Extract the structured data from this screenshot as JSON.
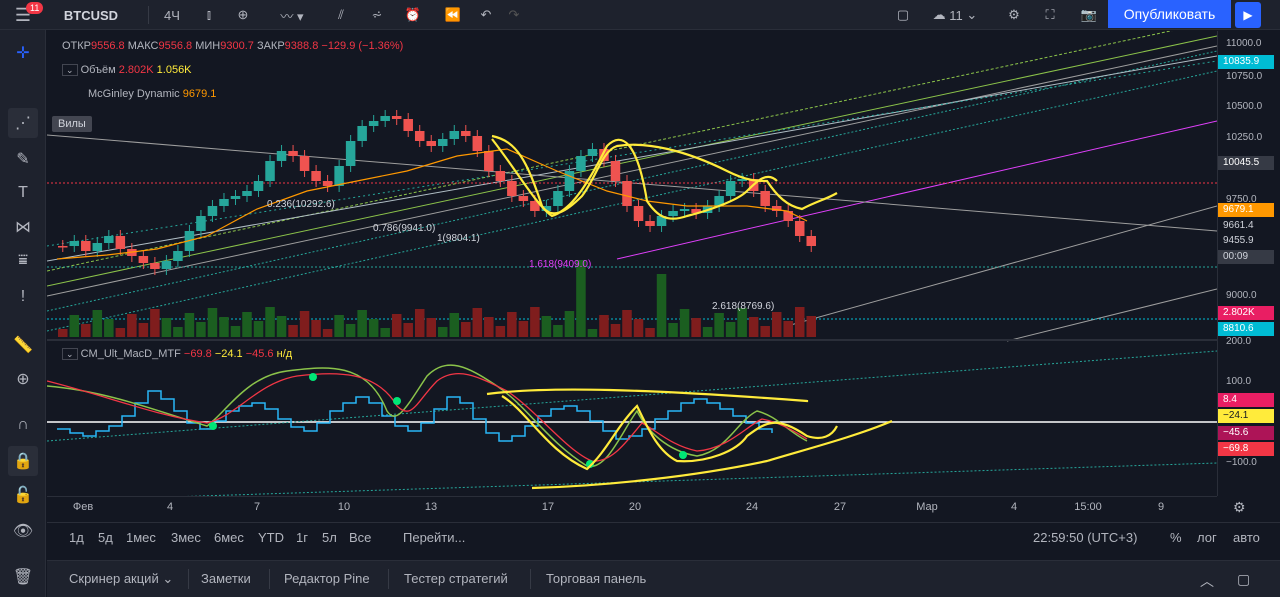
{
  "toolbar": {
    "notifications": "11",
    "symbol": "BTCUSD",
    "interval": "4Ч",
    "layouts_count": "11",
    "publish_label": "Опубликовать"
  },
  "left_tooltip": "Вилы",
  "legend": {
    "ohlc": {
      "open_label": "ОТКР",
      "open": "9556.8",
      "high_label": "МАКС",
      "high": "9556.8",
      "low_label": "МИН",
      "low": "9300.7",
      "close_label": "ЗАКР",
      "close": "9388.8",
      "change": "−129.9 (−1.36%)"
    },
    "volume": {
      "label": "Объём",
      "v1": "2.802K",
      "v2": "1.056K"
    },
    "mcginley": {
      "label": "McGinley Dynamic",
      "value": "9679.1"
    },
    "macd": {
      "label": "CM_Ult_MacD_MTF",
      "v1": "−69.8",
      "v2": "−24.1",
      "v3": "−45.6",
      "na": "н/д"
    }
  },
  "price_scale": {
    "labels": [
      "11000.0",
      "10750.0",
      "10500.0",
      "10250.0",
      "9750.0",
      "9000.0",
      "200.0"
    ],
    "tags": [
      {
        "text": "10835.9",
        "color": "#00bcd4"
      },
      {
        "text": "10045.5",
        "color": "#363a45"
      },
      {
        "text": "9679.1",
        "color": "#ff9800"
      },
      {
        "text": "9661.4",
        "color": "#131722"
      },
      {
        "text": "9455.9",
        "color": "#131722"
      },
      {
        "text": "00:09",
        "color": "#363a45"
      },
      {
        "text": "2.802K",
        "color": "#e91e63"
      },
      {
        "text": "8810.6",
        "color": "#00bcd4"
      }
    ]
  },
  "macd_scale": {
    "labels": [
      "100.0",
      "−100.0"
    ],
    "tags": [
      {
        "text": "8.4",
        "color": "#e91e63"
      },
      {
        "text": "−24.1",
        "color": "#ffeb3b"
      },
      {
        "text": "−45.6",
        "color": "#ad1457"
      },
      {
        "text": "−69.8",
        "color": "#f23645"
      }
    ]
  },
  "fib_labels": {
    "l1": "0.236(10292.6)",
    "l2": "0.786(9941.0)",
    "l3": "1(9804.1)",
    "l4": "1.618(9409.0)",
    "l5": "2.618(8769.6)"
  },
  "time_axis": [
    "Фев",
    "4",
    "7",
    "10",
    "13",
    "17",
    "20",
    "24",
    "27",
    "Мар",
    "4",
    "15:00",
    "9"
  ],
  "range_bar": {
    "ranges": [
      "1д",
      "5д",
      "1мес",
      "3мес",
      "6мес",
      "YTD",
      "1г",
      "5л",
      "Все"
    ],
    "goto": "Перейти...",
    "clock": "22:59:50 (UTC+3)",
    "percent": "%",
    "log": "лог",
    "auto": "авто"
  },
  "bottom_tabs": [
    "Скринер акций",
    "Заметки",
    "Редактор Pine",
    "Тестер стратегий",
    "Торговая панель"
  ]
}
